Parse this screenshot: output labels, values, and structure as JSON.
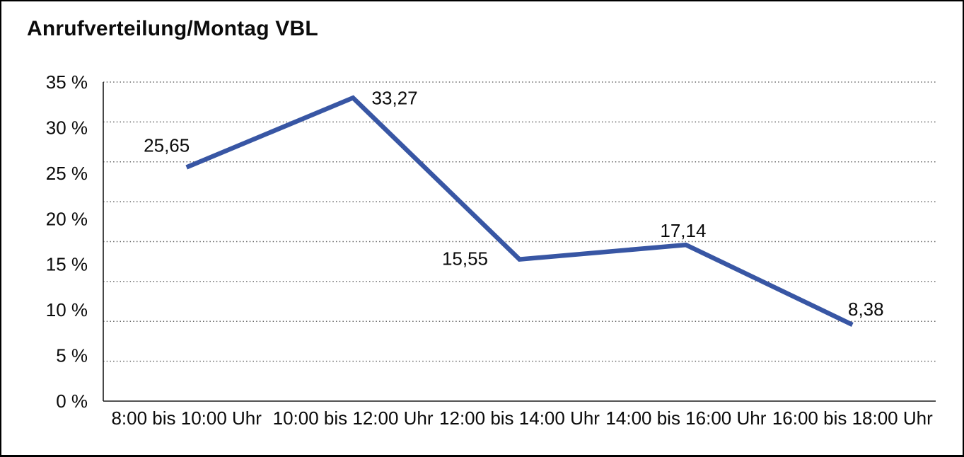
{
  "title": "Anrufverteilung/Montag VBL",
  "chart_data": {
    "type": "line",
    "title": "Anrufverteilung/Montag VBL",
    "categories": [
      "8:00 bis 10:00 Uhr",
      "10:00 bis 12:00 Uhr",
      "12:00 bis 14:00 Uhr",
      "14:00 bis 16:00 Uhr",
      "16:00 bis 18:00 Uhr"
    ],
    "values": [
      25.65,
      33.27,
      15.55,
      17.14,
      8.38
    ],
    "value_labels": [
      "25,65",
      "33,27",
      "15,55",
      "17,14",
      "8,38"
    ],
    "y_tick_labels": [
      "0 %",
      "5 %",
      "10 %",
      "15 %",
      "20 %",
      "25 %",
      "30 %",
      "35 %"
    ],
    "y_tick_values": [
      0,
      5,
      10,
      15,
      20,
      25,
      30,
      35
    ],
    "ylim": [
      0,
      35
    ],
    "xlabel": "",
    "ylabel": "",
    "legend": "none",
    "grid": "horizontal-dotted",
    "grid_divisions": 8,
    "line_color": "#3856A4",
    "axis_color": "#1a1a1a",
    "grid_color": "#666666",
    "text_color": "#0b0b0b",
    "background_color": "#ffffff"
  }
}
